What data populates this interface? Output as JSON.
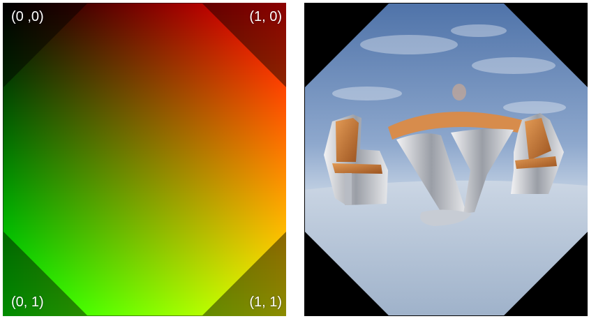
{
  "uv_panel": {
    "corner_labels": {
      "top_left": "(0 ,0)",
      "top_right": "(1, 0)",
      "bottom_left": "(0, 1)",
      "bottom_right": "(1, 1)"
    },
    "colors": {
      "uv_0_0": "#000000",
      "uv_1_0": "#ff0000",
      "uv_0_1": "#00ff00",
      "uv_1_1": "#ffff00"
    }
  },
  "render_panel": {
    "background": "#000000",
    "sky_top": "#4f73a9",
    "sky_bottom": "#c5d3e4",
    "floor": "#b9c6d8",
    "seat_color": "#c8722e",
    "metal_color": "#d9d9db"
  }
}
